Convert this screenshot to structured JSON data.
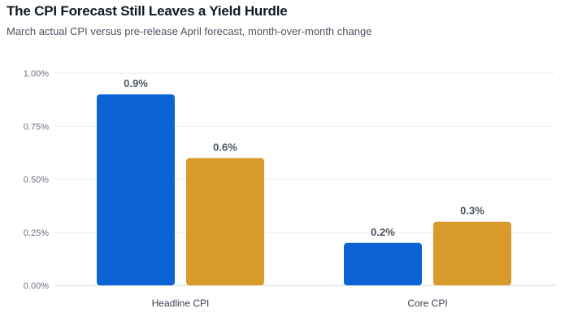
{
  "chart_data": {
    "type": "bar",
    "title": "The CPI Forecast Still Leaves a Yield Hurdle",
    "subtitle": "March actual CPI versus pre-release April forecast, month-over-month change",
    "categories": [
      "Headline CPI",
      "Core CPI"
    ],
    "series": [
      {
        "values": [
          0.9,
          0.2
        ],
        "color": "#0b63d6"
      },
      {
        "values": [
          0.6,
          0.3
        ],
        "color": "#d89a2b"
      }
    ],
    "data_labels": [
      [
        "0.9%",
        "0.2%"
      ],
      [
        "0.6%",
        "0.3%"
      ]
    ],
    "yticks": [
      0,
      0.25,
      0.5,
      0.75,
      1.0
    ],
    "ytick_labels": [
      "0.00%",
      "0.25%",
      "0.50%",
      "0.75%",
      "1.00%"
    ],
    "ylim": [
      0,
      1.0
    ],
    "grid": true
  }
}
